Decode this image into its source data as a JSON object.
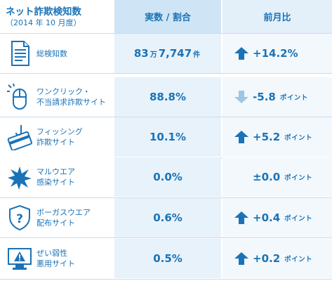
{
  "header": {
    "title": "ネット詐欺検知数",
    "subtitle": "（2014 年 10 月度）",
    "col_value": "実数 / 割合",
    "col_change": "前月比"
  },
  "rows": [
    {
      "label1": "総検知数",
      "label2": "",
      "icon": "document-icon",
      "value": "83",
      "value_unit1": "万",
      "value_rest": "7,747",
      "value_unit2": "件",
      "trend": "up",
      "change": "+14.2%",
      "change_unit": ""
    },
    {
      "label1": "ワンクリック・",
      "label2": "不当請求詐欺サイト",
      "icon": "mouse-icon",
      "value": "88.8%",
      "trend": "down",
      "change": "-5.8",
      "change_unit": "ポイント"
    },
    {
      "label1": "フィッシング",
      "label2": "詐欺サイト",
      "icon": "fishing-hook-card-icon",
      "value": "10.1%",
      "trend": "up",
      "change": "+5.2",
      "change_unit": "ポイント"
    },
    {
      "label1": "マルウエア",
      "label2": "感染サイト",
      "icon": "malware-burst-icon",
      "value": "0.0%",
      "trend": "none",
      "change": "±0.0",
      "change_unit": "ポイント"
    },
    {
      "label1": "ボーガスウエア",
      "label2": "配布サイト",
      "icon": "shield-question-icon",
      "value": "0.6%",
      "trend": "up",
      "change": "+0.4",
      "change_unit": "ポイント"
    },
    {
      "label1": "ぜい弱性",
      "label2": "悪用サイト",
      "icon": "monitor-warning-icon",
      "value": "0.5%",
      "trend": "up",
      "change": "+0.2",
      "change_unit": "ポイント"
    }
  ],
  "colors": {
    "text": "#1a73b8",
    "arrow_up": "#1a73b8",
    "arrow_down": "#9cc6e6",
    "value_bg": "#e8f2fa",
    "change_bg": "#f3f8fc",
    "header_value_bg": "#cfe4f4",
    "header_change_bg": "#e3eff9"
  }
}
